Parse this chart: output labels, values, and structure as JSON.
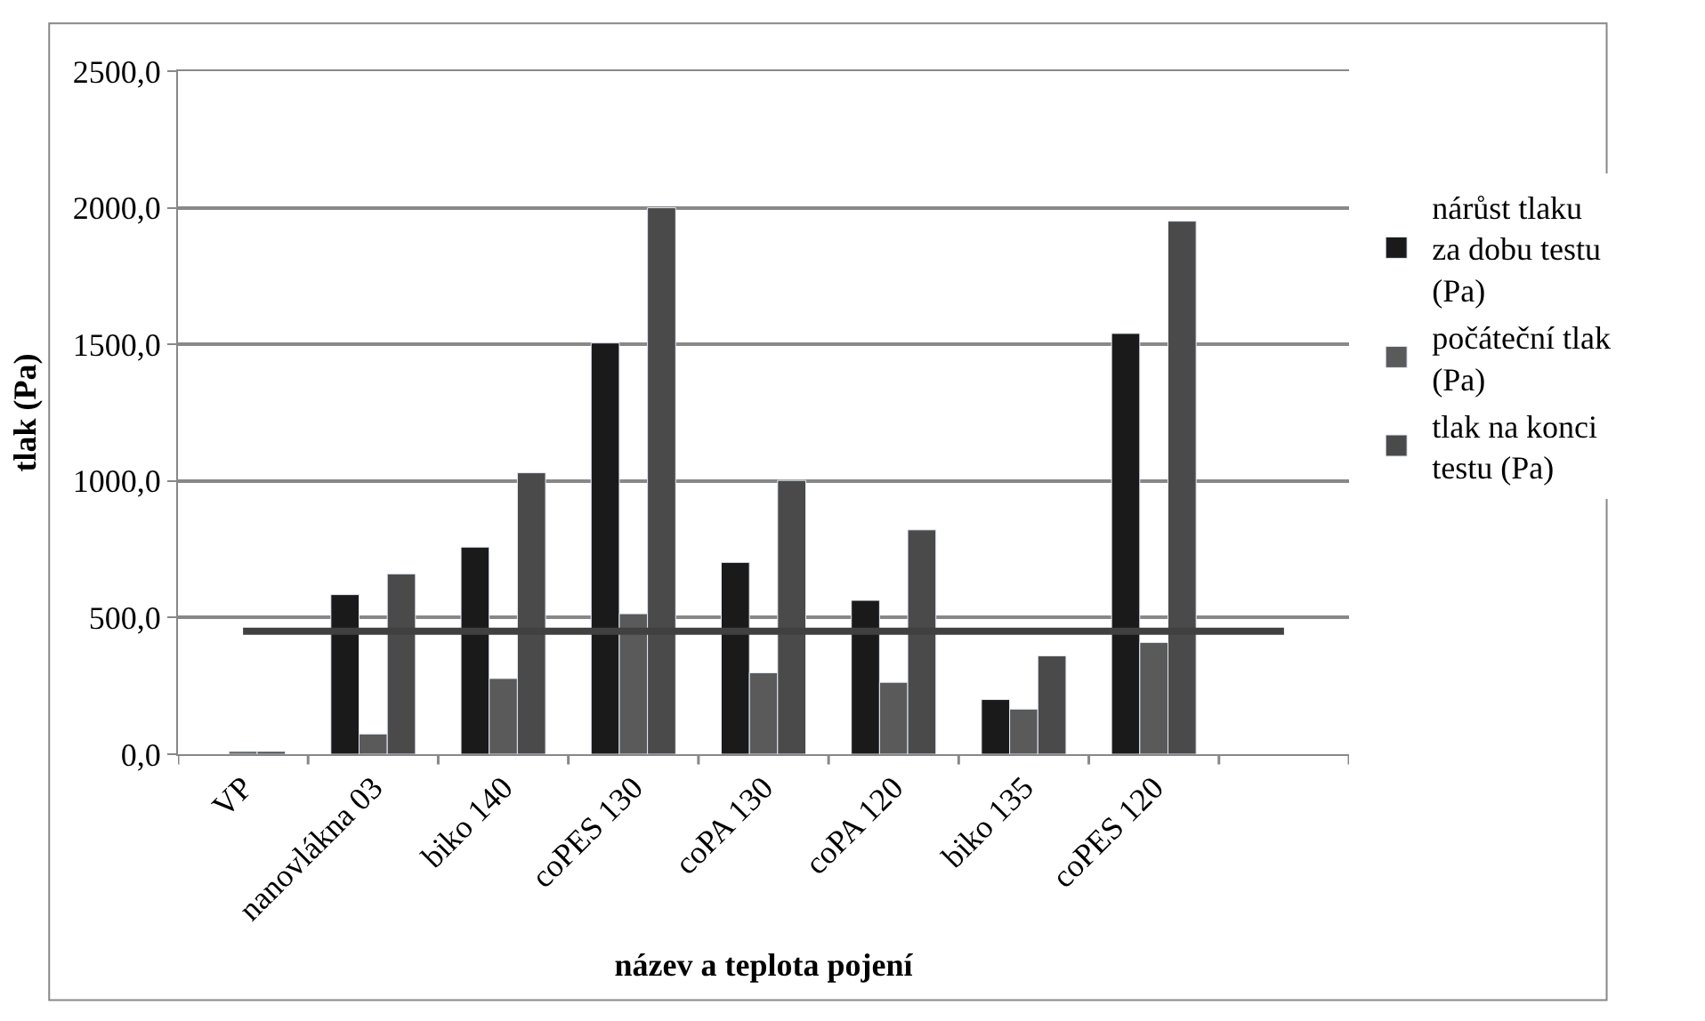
{
  "chart_data": {
    "type": "bar",
    "xlabel": "název a teplota pojení",
    "ylabel": "tlak (Pa)",
    "categories": [
      "VP",
      "nanovlákna 03",
      "biko 140",
      "coPES 130",
      "coPA 130",
      "coPA 120",
      "biko 135",
      "coPES 120",
      null
    ],
    "series": [
      {
        "name": "nárůst tlaku za dobu testu (Pa)",
        "color": "#1a1a1a",
        "values": [
          null,
          584,
          758,
          1505,
          702,
          563,
          200,
          1540,
          null
        ]
      },
      {
        "name": "počáteční tlak (Pa)",
        "color": "#5a5a5a",
        "values": [
          10,
          74,
          277,
          514,
          298,
          263,
          165,
          409,
          null
        ]
      },
      {
        "name": "tlak na konci testu (Pa)",
        "color": "#4a4a4a",
        "values": [
          10,
          660,
          1030,
          2000,
          1002,
          821,
          360,
          1951,
          null
        ]
      },
      {
        "type": "line",
        "color": "#404040",
        "values": [
          450,
          450,
          450,
          450,
          450,
          450,
          450,
          450,
          450
        ]
      }
    ],
    "ylim": [
      0,
      2500
    ],
    "yticks": [
      {
        "value": 0,
        "label": "0,0"
      },
      {
        "value": 500,
        "label": "500,0"
      },
      {
        "value": 1000,
        "label": "1000,0"
      },
      {
        "value": 1500,
        "label": "1500,0"
      },
      {
        "value": 2000,
        "label": "2000,0"
      },
      {
        "value": 2500,
        "label": "2500,0"
      }
    ],
    "grid": "y",
    "legend": "right",
    "marker": "none",
    "line_style": "solid"
  }
}
